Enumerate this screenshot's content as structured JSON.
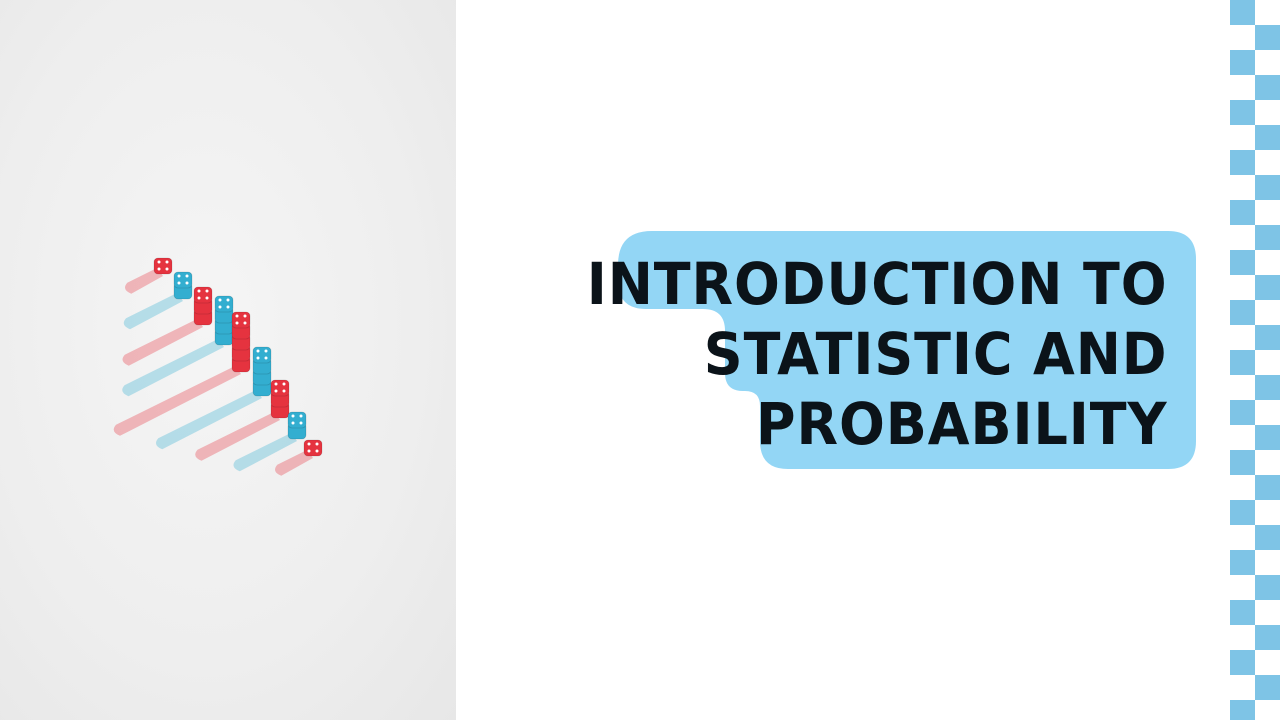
{
  "slide": {
    "title_lines": [
      "INTRODUCTION TO",
      "STATISTIC AND",
      "PROBABILITY"
    ]
  },
  "photo": {
    "subject": "stacked red and blue dice casting long shadows on a white background"
  },
  "colors": {
    "bubble": "#93d6f5",
    "title_text": "#0b1319",
    "checker": "#7ec4e6",
    "dice_red": "#e5333f",
    "dice_blue": "#33aed0"
  }
}
